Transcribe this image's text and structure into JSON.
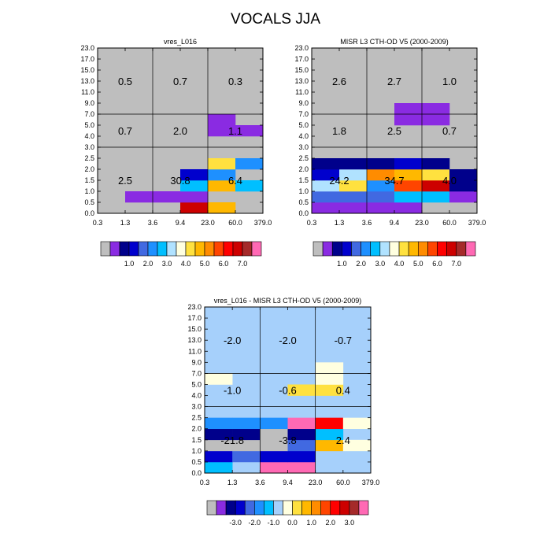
{
  "title": "VOCALS JJA",
  "x_tick_labels": [
    "0.3",
    "1.3",
    "3.6",
    "9.4",
    "23.0",
    "60.0",
    "379.0"
  ],
  "y_tick_labels": [
    "0.0",
    "0.5",
    "1.0",
    "1.5",
    "2.0",
    "2.5",
    "3.0",
    "4.0",
    "5.0",
    "7.0",
    "9.0",
    "11.0",
    "13.0",
    "15.0",
    "17.0",
    "23.0"
  ],
  "colors": {
    "missing": "#bebebe",
    "outline": "#000000"
  },
  "palettes": {
    "abs": [
      "#bebebe",
      "#8a2be2",
      "#00008b",
      "#0000cd",
      "#4169e1",
      "#1e90ff",
      "#00bfff",
      "#b0e2ff",
      "#ffffe0",
      "#ffe13f",
      "#ffb800",
      "#ff8c00",
      "#ff4500",
      "#ff0000",
      "#cd0000",
      "#a52a2a",
      "#ff69b4"
    ],
    "diff": [
      "#bebebe",
      "#8a2be2",
      "#00008b",
      "#0000cd",
      "#4169e1",
      "#1e90ff",
      "#00bfff",
      "#a6d0fb",
      "#ffffe0",
      "#ffe13f",
      "#ffb800",
      "#ff8c00",
      "#ff4500",
      "#ff0000",
      "#cd0000",
      "#a52a2a",
      "#ff69b4"
    ]
  },
  "chart_data": [
    {
      "type": "heatmap",
      "id": "model",
      "title": "vres_L016",
      "bg": "#bebebe",
      "cells": [
        [
          3,
          9,
          0,
          1,
          "#cd0000"
        ],
        [
          4,
          9,
          0,
          1,
          "#ffb800"
        ],
        [
          1,
          5,
          1,
          2,
          "#8a2be2"
        ],
        [
          2,
          9,
          1,
          2,
          "#8a2be2"
        ],
        [
          3,
          9,
          1,
          2,
          "#8a2be2"
        ],
        [
          3,
          9,
          2,
          3,
          "#00bfff"
        ],
        [
          4,
          9,
          2,
          3,
          "#ffb800"
        ],
        [
          5,
          9,
          2,
          3,
          "#00bfff"
        ],
        [
          3,
          9,
          3,
          4,
          "#0000cd"
        ],
        [
          4,
          9,
          3,
          4,
          "#1e90ff"
        ],
        [
          4,
          9,
          4,
          5,
          "#ffe13f"
        ],
        [
          5,
          9,
          4,
          5,
          "#1e90ff"
        ],
        [
          4,
          9,
          7,
          8,
          "#8a2be2"
        ],
        [
          5,
          9,
          7,
          8,
          "#8a2be2"
        ],
        [
          4,
          9,
          8,
          9,
          "#8a2be2"
        ]
      ],
      "box_labels": [
        {
          "col": 0,
          "row": 0,
          "text": "2.5"
        },
        {
          "col": 1,
          "row": 0,
          "text": "30.8"
        },
        {
          "col": 2,
          "row": 0,
          "text": "6.4"
        },
        {
          "col": 0,
          "row": 1,
          "text": "0.7"
        },
        {
          "col": 1,
          "row": 1,
          "text": "2.0"
        },
        {
          "col": 2,
          "row": 1,
          "text": "1.1"
        },
        {
          "col": 0,
          "row": 2,
          "text": "0.5"
        },
        {
          "col": 1,
          "row": 2,
          "text": "0.7"
        },
        {
          "col": 2,
          "row": 2,
          "text": "0.3"
        }
      ],
      "colorbar_labels": [
        "1.0",
        "2.0",
        "3.0",
        "4.0",
        "5.0",
        "6.0",
        "7.0"
      ]
    },
    {
      "type": "heatmap",
      "id": "misr",
      "title": "MISR L3 CTH-OD V5 (2000-2009)",
      "bg": "#bebebe",
      "cells": [
        [
          0,
          9,
          0,
          1,
          "#8a2be2"
        ],
        [
          1,
          9,
          0,
          1,
          "#8a2be2"
        ],
        [
          2,
          9,
          0,
          1,
          "#8a2be2"
        ],
        [
          3,
          9,
          0,
          1,
          "#8a2be2"
        ],
        [
          0,
          9,
          1,
          2,
          "#4169e1"
        ],
        [
          1,
          9,
          1,
          2,
          "#4169e1"
        ],
        [
          2,
          9,
          1,
          2,
          "#4169e1"
        ],
        [
          3,
          9,
          1,
          2,
          "#00bfff"
        ],
        [
          4,
          9,
          1,
          2,
          "#00bfff"
        ],
        [
          5,
          9,
          1,
          2,
          "#8a2be2"
        ],
        [
          0,
          9,
          2,
          3,
          "#b0e2ff"
        ],
        [
          1,
          9,
          2,
          3,
          "#ffe13f"
        ],
        [
          2,
          9,
          2,
          3,
          "#1e90ff"
        ],
        [
          3,
          9,
          2,
          3,
          "#ff4500"
        ],
        [
          4,
          9,
          2,
          3,
          "#cd0000"
        ],
        [
          5,
          9,
          2,
          3,
          "#00008b"
        ],
        [
          0,
          9,
          3,
          4,
          "#0000cd"
        ],
        [
          1,
          9,
          3,
          4,
          "#b0e2ff"
        ],
        [
          2,
          9,
          3,
          4,
          "#ff8c00"
        ],
        [
          3,
          9,
          3,
          4,
          "#ffb800"
        ],
        [
          4,
          9,
          3,
          4,
          "#ffe13f"
        ],
        [
          5,
          9,
          3,
          4,
          "#00008b"
        ],
        [
          0,
          9,
          4,
          5,
          "#00008b"
        ],
        [
          1,
          9,
          4,
          5,
          "#00008b"
        ],
        [
          2,
          9,
          4,
          5,
          "#00008b"
        ],
        [
          3,
          9,
          4,
          5,
          "#0000cd"
        ],
        [
          4,
          9,
          4,
          5,
          "#00008b"
        ],
        [
          3,
          9,
          8,
          9,
          "#8a2be2"
        ],
        [
          4,
          9,
          8,
          9,
          "#8a2be2"
        ],
        [
          3,
          9,
          9,
          10,
          "#8a2be2"
        ],
        [
          4,
          9,
          9,
          10,
          "#8a2be2"
        ]
      ],
      "box_labels": [
        {
          "col": 0,
          "row": 0,
          "text": "24.2"
        },
        {
          "col": 1,
          "row": 0,
          "text": "34.7"
        },
        {
          "col": 2,
          "row": 0,
          "text": "4.0"
        },
        {
          "col": 0,
          "row": 1,
          "text": "1.8"
        },
        {
          "col": 1,
          "row": 1,
          "text": "2.5"
        },
        {
          "col": 2,
          "row": 1,
          "text": "0.7"
        },
        {
          "col": 0,
          "row": 2,
          "text": "2.6"
        },
        {
          "col": 1,
          "row": 2,
          "text": "2.7"
        },
        {
          "col": 2,
          "row": 2,
          "text": "1.0"
        }
      ],
      "colorbar_labels": [
        "1.0",
        "2.0",
        "3.0",
        "4.0",
        "5.0",
        "6.0",
        "7.0"
      ]
    },
    {
      "type": "heatmap",
      "id": "diff",
      "title": "vres_L016 - MISR L3 CTH-OD V5 (2000-2009)",
      "bg": "#a6d0fb",
      "cells": [
        [
          0,
          9,
          0,
          1,
          "#00bfff"
        ],
        [
          2,
          9,
          0,
          1,
          "#ff69b4"
        ],
        [
          3,
          9,
          0,
          1,
          "#ff69b4"
        ],
        [
          0,
          9,
          1,
          2,
          "#0000cd"
        ],
        [
          1,
          9,
          1,
          2,
          "#4169e1"
        ],
        [
          2,
          9,
          1,
          2,
          "#0000cd"
        ],
        [
          3,
          9,
          1,
          2,
          "#0000cd"
        ],
        [
          0,
          9,
          2,
          3,
          "#bebebe"
        ],
        [
          1,
          9,
          2,
          3,
          "#bebebe"
        ],
        [
          2,
          9,
          2,
          3,
          "#bebebe"
        ],
        [
          3,
          9,
          2,
          3,
          "#4169e1"
        ],
        [
          4,
          9,
          2,
          3,
          "#ffb800"
        ],
        [
          5,
          9,
          2,
          3,
          "#ffffe0"
        ],
        [
          0,
          9,
          3,
          4,
          "#00008b"
        ],
        [
          1,
          9,
          3,
          4,
          "#00008b"
        ],
        [
          2,
          9,
          3,
          4,
          "#bebebe"
        ],
        [
          3,
          9,
          3,
          4,
          "#00008b"
        ],
        [
          4,
          9,
          3,
          4,
          "#00bfff"
        ],
        [
          0,
          9,
          4,
          5,
          "#1e90ff"
        ],
        [
          1,
          9,
          4,
          5,
          "#1e90ff"
        ],
        [
          2,
          9,
          4,
          5,
          "#1e90ff"
        ],
        [
          3,
          9,
          4,
          5,
          "#ff69b4"
        ],
        [
          4,
          9,
          4,
          5,
          "#ff0000"
        ],
        [
          5,
          9,
          4,
          5,
          "#ffffe0"
        ],
        [
          3,
          9,
          7,
          8,
          "#ffe13f"
        ],
        [
          4,
          9,
          7,
          8,
          "#ffe13f"
        ],
        [
          0,
          9,
          8,
          9,
          "#ffffe0"
        ],
        [
          4,
          9,
          8,
          9,
          "#ffffe0"
        ],
        [
          4,
          9,
          9,
          10,
          "#ffffe0"
        ]
      ],
      "box_labels": [
        {
          "col": 0,
          "row": 0,
          "text": "-21.8"
        },
        {
          "col": 1,
          "row": 0,
          "text": "-3.8"
        },
        {
          "col": 2,
          "row": 0,
          "text": "2.4"
        },
        {
          "col": 0,
          "row": 1,
          "text": "-1.0"
        },
        {
          "col": 1,
          "row": 1,
          "text": "-0.6"
        },
        {
          "col": 2,
          "row": 1,
          "text": "0.4"
        },
        {
          "col": 0,
          "row": 2,
          "text": "-2.0"
        },
        {
          "col": 1,
          "row": 2,
          "text": "-2.0"
        },
        {
          "col": 2,
          "row": 2,
          "text": "-0.7"
        }
      ],
      "colorbar_labels": [
        "-3.0",
        "-2.0",
        "-1.0",
        "0.0",
        "1.0",
        "2.0",
        "3.0"
      ]
    }
  ]
}
